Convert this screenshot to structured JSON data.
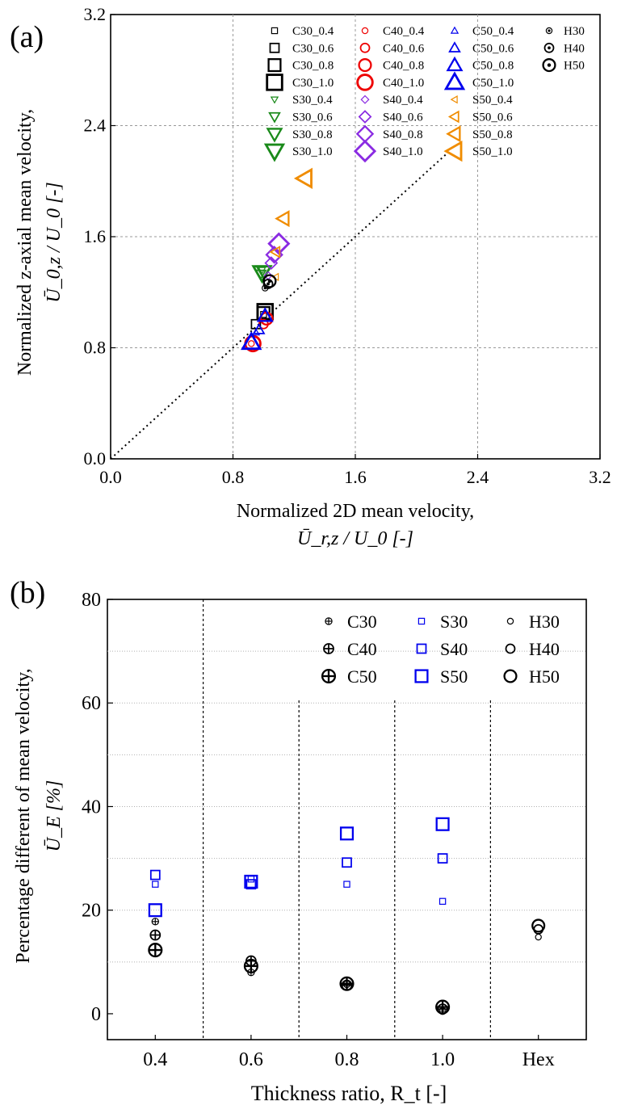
{
  "colors": {
    "C": "#000000",
    "S": "#0000ee",
    "S_a": "#1a8a1a",
    "O_a": "#ee0000",
    "P_a": "#8a2be2",
    "T_a": "#f08c00",
    "grid": "#999999"
  },
  "chart_data": [
    {
      "type": "scatter",
      "panel_label": "(a)",
      "xlabel_line1": "Normalized 2D mean velocity,",
      "xlabel_line2": "Ū_r,z / U_0 [-]",
      "ylabel_line1": "Normalized z-axial  mean velocity,",
      "ylabel_line2": "Ū_0,z / U_0 [-]",
      "xlim": [
        0,
        3.2
      ],
      "ylim": [
        0,
        3.2
      ],
      "xticks": [
        "0.0",
        "0.8",
        "1.6",
        "2.4",
        "3.2"
      ],
      "yticks": [
        "0.0",
        "0.8",
        "1.6",
        "2.4",
        "3.2"
      ],
      "reference_line": "y = x (dotted)",
      "grid": "dashed at 0.8, 1.6, 2.4",
      "legend_position": "top-right",
      "series": [
        {
          "name": "C30_0.4",
          "marker": "square",
          "color": "#000000",
          "size": 1,
          "x": 1.0,
          "y": 1.04
        },
        {
          "name": "C30_0.6",
          "marker": "square",
          "color": "#000000",
          "size": 2,
          "x": 0.95,
          "y": 0.97
        },
        {
          "name": "C30_0.8",
          "marker": "square",
          "color": "#000000",
          "size": 3,
          "x": 1.0,
          "y": 1.05
        },
        {
          "name": "C30_1.0",
          "marker": "square",
          "color": "#000000",
          "size": 4,
          "x": 1.01,
          "y": 1.06
        },
        {
          "name": "C40_0.4",
          "marker": "circle",
          "color": "#ee0000",
          "size": 1,
          "x": 0.92,
          "y": 0.83
        },
        {
          "name": "C40_0.6",
          "marker": "circle",
          "color": "#ee0000",
          "size": 2,
          "x": 1.0,
          "y": 0.97
        },
        {
          "name": "C40_0.8",
          "marker": "circle",
          "color": "#ee0000",
          "size": 3,
          "x": 1.02,
          "y": 1.01
        },
        {
          "name": "C40_1.0",
          "marker": "circle",
          "color": "#ee0000",
          "size": 4,
          "x": 0.93,
          "y": 0.83
        },
        {
          "name": "C50_0.4",
          "marker": "triangle-up",
          "color": "#0000ee",
          "size": 1,
          "x": 0.95,
          "y": 0.91
        },
        {
          "name": "C50_0.6",
          "marker": "triangle-up",
          "color": "#0000ee",
          "size": 2,
          "x": 0.97,
          "y": 0.93
        },
        {
          "name": "C50_0.8",
          "marker": "triangle-up",
          "color": "#0000ee",
          "size": 3,
          "x": 1.01,
          "y": 1.03
        },
        {
          "name": "C50_1.0",
          "marker": "triangle-up",
          "color": "#0000ee",
          "size": 4,
          "x": 0.92,
          "y": 0.84
        },
        {
          "name": "S30_0.4",
          "marker": "triangle-down",
          "color": "#1a8a1a",
          "size": 1,
          "x": 0.99,
          "y": 1.36
        },
        {
          "name": "S30_0.6",
          "marker": "triangle-down",
          "color": "#1a8a1a",
          "size": 2,
          "x": 0.98,
          "y": 1.33
        },
        {
          "name": "S30_0.8",
          "marker": "triangle-down",
          "color": "#1a8a1a",
          "size": 3,
          "x": 1.0,
          "y": 1.35
        },
        {
          "name": "S30_1.0",
          "marker": "triangle-down",
          "color": "#1a8a1a",
          "size": 4,
          "x": 0.99,
          "y": 1.34
        },
        {
          "name": "S40_0.4",
          "marker": "diamond",
          "color": "#8a2be2",
          "size": 1,
          "x": 1.03,
          "y": 1.32
        },
        {
          "name": "S40_0.6",
          "marker": "diamond",
          "color": "#8a2be2",
          "size": 2,
          "x": 1.05,
          "y": 1.41
        },
        {
          "name": "S40_0.8",
          "marker": "diamond",
          "color": "#8a2be2",
          "size": 3,
          "x": 1.07,
          "y": 1.47
        },
        {
          "name": "S40_1.0",
          "marker": "diamond",
          "color": "#8a2be2",
          "size": 4,
          "x": 1.1,
          "y": 1.55
        },
        {
          "name": "S50_0.4",
          "marker": "triangle-left",
          "color": "#f08c00",
          "size": 1,
          "x": 1.08,
          "y": 1.31
        },
        {
          "name": "S50_0.6",
          "marker": "triangle-left",
          "color": "#f08c00",
          "size": 2,
          "x": 1.08,
          "y": 1.49
        },
        {
          "name": "S50_0.8",
          "marker": "triangle-left",
          "color": "#f08c00",
          "size": 3,
          "x": 1.13,
          "y": 1.73
        },
        {
          "name": "S50_1.0",
          "marker": "triangle-left",
          "color": "#f08c00",
          "size": 4,
          "x": 1.27,
          "y": 2.02
        },
        {
          "name": "H30",
          "marker": "circle-dot",
          "color": "#000000",
          "size": 1,
          "x": 1.01,
          "y": 1.23
        },
        {
          "name": "H40",
          "marker": "circle-dot",
          "color": "#000000",
          "size": 2,
          "x": 1.03,
          "y": 1.26
        },
        {
          "name": "H50",
          "marker": "circle-dot",
          "color": "#000000",
          "size": 3,
          "x": 1.04,
          "y": 1.28
        }
      ]
    },
    {
      "type": "scatter",
      "panel_label": "(b)",
      "xlabel": "Thickness ratio, R_t [-]",
      "ylabel_line1": "Percentage different of mean velocity,",
      "ylabel_line2": "Ū_E [%]",
      "categories": [
        "0.4",
        "0.6",
        "0.8",
        "1.0",
        "Hex"
      ],
      "ylim": [
        -5,
        80
      ],
      "yticks": [
        "0",
        "20",
        "40",
        "60",
        "80"
      ],
      "legend_position": "top-right",
      "series": [
        {
          "name": "C30",
          "marker": "circle-plus",
          "color": "#000000",
          "size": 1,
          "values": [
            17.8,
            8.0,
            5.7,
            0.5,
            null
          ]
        },
        {
          "name": "C40",
          "marker": "circle-plus",
          "color": "#000000",
          "size": 2,
          "values": [
            15.2,
            10.2,
            5.5,
            0.9,
            null
          ]
        },
        {
          "name": "C50",
          "marker": "circle-plus",
          "color": "#000000",
          "size": 3,
          "values": [
            12.3,
            9.2,
            5.8,
            1.3,
            null
          ]
        },
        {
          "name": "S30",
          "marker": "square",
          "color": "#0000ee",
          "size": 1,
          "values": [
            25.0,
            26.0,
            25.0,
            21.7,
            null
          ]
        },
        {
          "name": "S40",
          "marker": "square",
          "color": "#0000ee",
          "size": 2,
          "values": [
            26.8,
            25.0,
            29.2,
            30.0,
            null
          ]
        },
        {
          "name": "S50",
          "marker": "square",
          "color": "#0000ee",
          "size": 3,
          "values": [
            20.0,
            25.5,
            34.8,
            36.6,
            null
          ]
        },
        {
          "name": "H30",
          "marker": "circle",
          "color": "#000000",
          "size": 1,
          "values": [
            null,
            null,
            null,
            null,
            14.8
          ]
        },
        {
          "name": "H40",
          "marker": "circle",
          "color": "#000000",
          "size": 2,
          "values": [
            null,
            null,
            null,
            null,
            16.3
          ]
        },
        {
          "name": "H50",
          "marker": "circle",
          "color": "#000000",
          "size": 3,
          "values": [
            null,
            null,
            null,
            null,
            17.0
          ]
        }
      ]
    }
  ]
}
